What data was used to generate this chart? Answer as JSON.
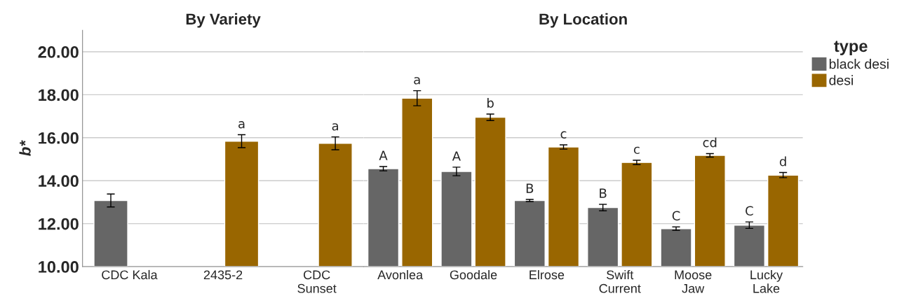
{
  "chart_data": [
    {
      "type": "bar",
      "title": "By Variety",
      "ylabel": "b*",
      "categories": [
        "CDC Kala",
        "2435-2",
        "CDC\nSunset"
      ],
      "series": [
        {
          "color": "#666666",
          "values": [
            13.08,
            null,
            null
          ],
          "errors": [
            0.3,
            null,
            null
          ],
          "value_labels": [
            null,
            null,
            null
          ]
        },
        {
          "color": "#996600",
          "values": [
            null,
            15.84,
            15.74
          ],
          "errors": [
            null,
            0.3,
            0.3
          ],
          "value_labels": [
            null,
            "a",
            "a"
          ]
        }
      ],
      "ylim": [
        10,
        21
      ],
      "yticks": [
        {
          "value": 10,
          "label": "10.00"
        },
        {
          "value": 12,
          "label": "12.00"
        },
        {
          "value": 14,
          "label": "14.00"
        },
        {
          "value": 16,
          "label": "16.00"
        },
        {
          "value": 18,
          "label": "18.00"
        },
        {
          "value": 20,
          "label": "20.00"
        }
      ],
      "grid": "y",
      "legend": false
    },
    {
      "type": "bar",
      "title": "By Location",
      "categories": [
        "Avonlea",
        "Goodale",
        "Elrose",
        "Swift\nCurrent",
        "Moose\nJaw",
        "Lucky\nLake"
      ],
      "legend_title": "type",
      "series": [
        {
          "name": "black desi",
          "color": "#666666",
          "values": [
            14.56,
            14.43,
            13.08,
            12.75,
            11.77,
            11.93
          ],
          "errors": [
            0.1,
            0.2,
            0.05,
            0.15,
            0.08,
            0.15
          ],
          "value_labels": [
            "A",
            "A",
            "B",
            "B",
            "C",
            "C"
          ]
        },
        {
          "name": "desi",
          "color": "#996600",
          "values": [
            17.84,
            16.95,
            15.57,
            14.85,
            15.18,
            14.26
          ],
          "errors": [
            0.35,
            0.15,
            0.1,
            0.1,
            0.08,
            0.12
          ],
          "value_labels": [
            "a",
            "b",
            "c",
            "c",
            "cd",
            "d"
          ]
        }
      ],
      "ylim": [
        10,
        21
      ],
      "yticks": [
        10,
        12,
        14,
        16,
        18,
        20
      ],
      "tick_labels": "x",
      "grid": "y",
      "legend": "right"
    }
  ]
}
